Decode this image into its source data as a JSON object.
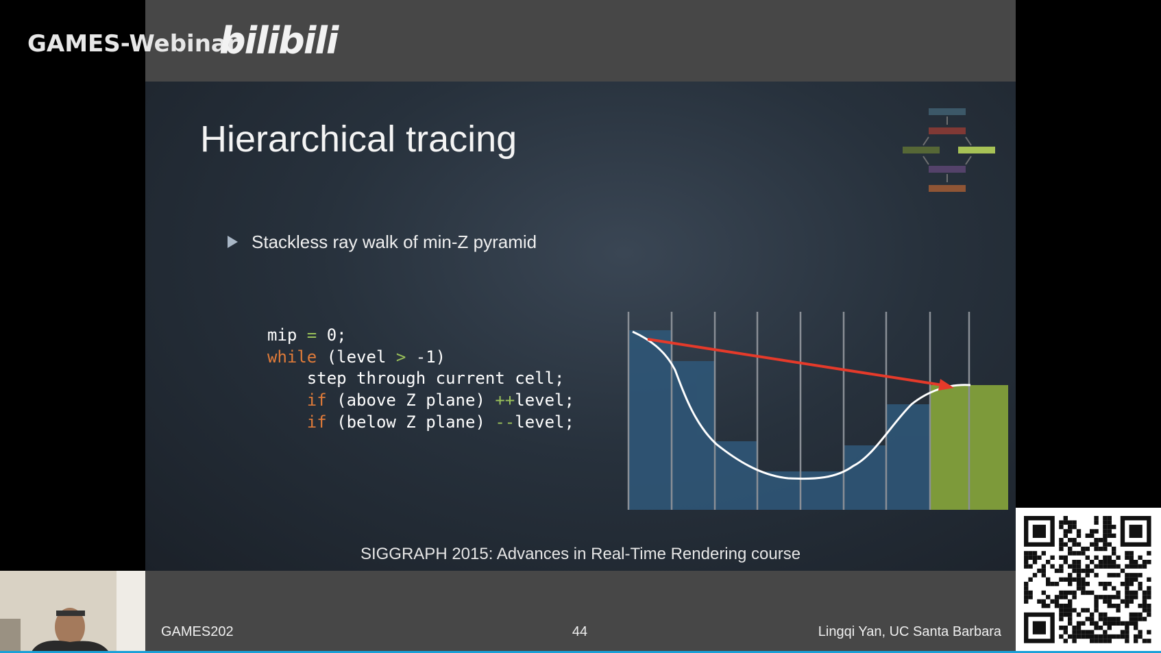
{
  "header": {
    "logo_text": "GAMES-Webinar",
    "platform": "bilibili"
  },
  "slide": {
    "title": "Hierarchical tracing",
    "bullets": [
      "Stackless ray walk of min-Z pyramid"
    ],
    "code": [
      [
        {
          "text": "mip ",
          "color": "#ffffff"
        },
        {
          "text": "=",
          "color": "#9bc25a"
        },
        {
          "text": " 0;",
          "color": "#ffffff"
        }
      ],
      [
        {
          "text": "while",
          "color": "#e07b39"
        },
        {
          "text": " (level ",
          "color": "#ffffff"
        },
        {
          "text": ">",
          "color": "#9bc25a"
        },
        {
          "text": " -1)",
          "color": "#ffffff"
        }
      ],
      [
        {
          "text": "    step through current cell;",
          "color": "#ffffff"
        }
      ],
      [
        {
          "text": "    ",
          "color": "#ffffff"
        },
        {
          "text": "if",
          "color": "#e07b39"
        },
        {
          "text": " (above Z plane) ",
          "color": "#ffffff"
        },
        {
          "text": "++",
          "color": "#9bc25a"
        },
        {
          "text": "level;",
          "color": "#ffffff"
        }
      ],
      [
        {
          "text": "    ",
          "color": "#ffffff"
        },
        {
          "text": "if",
          "color": "#e07b39"
        },
        {
          "text": " (below Z plane) ",
          "color": "#ffffff"
        },
        {
          "text": "--",
          "color": "#9bc25a"
        },
        {
          "text": "level;",
          "color": "#ffffff"
        }
      ]
    ],
    "caption": "SIGGRAPH 2015: Advances in Real-Time Rendering course"
  },
  "footer": {
    "left": "GAMES202",
    "center": "44",
    "right": "Lingqi Yan, UC Santa Barbara"
  }
}
